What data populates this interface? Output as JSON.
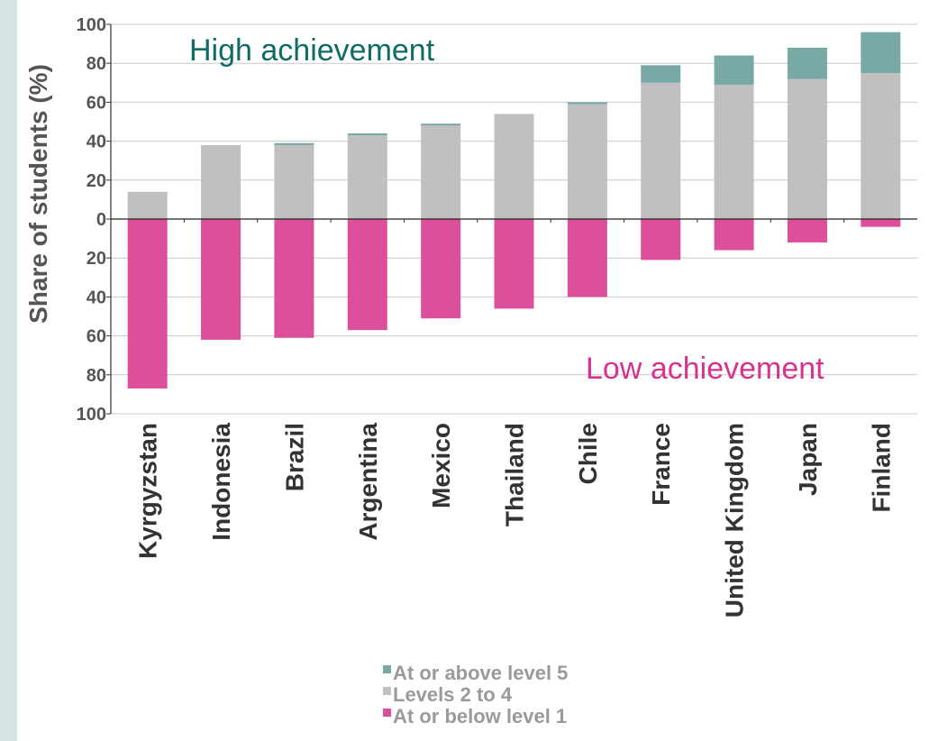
{
  "chart_data": {
    "type": "bar",
    "stacked": true,
    "diverging": true,
    "ylabel": "Share of students (%)",
    "ylim": [
      -100,
      100
    ],
    "yticks": [
      100,
      80,
      60,
      40,
      20,
      0,
      20,
      40,
      60,
      80,
      100
    ],
    "grid": true,
    "categories": [
      "Kyrgyzstan",
      "Indonesia",
      "Brazil",
      "Argentina",
      "Mexico",
      "Thailand",
      "Chile",
      "France",
      "United Kingdom",
      "Japan",
      "Finland"
    ],
    "series": [
      {
        "name": "At or above level 5",
        "color": "#78a9a7",
        "values": [
          0,
          0,
          1,
          1,
          1,
          0,
          1,
          9,
          15,
          16,
          21
        ]
      },
      {
        "name": "Levels 2 to 4",
        "color": "#c0c0c0",
        "values": [
          14,
          38,
          38,
          43,
          48,
          54,
          59,
          70,
          69,
          72,
          75
        ]
      },
      {
        "name": "At or below level 1",
        "color": "#dd4f9b",
        "values": [
          -87,
          -62,
          -61,
          -57,
          -51,
          -46,
          -40,
          -21,
          -16,
          -12,
          -4
        ]
      }
    ],
    "annotations": [
      {
        "text": "High achievement",
        "color": "#0e6b66"
      },
      {
        "text": "Low achievement",
        "color": "#d6338f"
      }
    ],
    "legend_position": "bottom"
  }
}
